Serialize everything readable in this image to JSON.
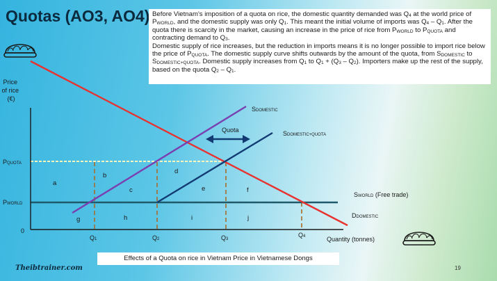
{
  "title": "Quotas (AO3, AO4)",
  "description": [
    [
      "Before Vietnam's imposition of a quota on rice, the domestic quantity demanded was Q",
      "4",
      " at the world price of P",
      "WORLD",
      ", and the domestic supply was only Q",
      "1",
      ". This meant the initial volume of imports was Q",
      "4",
      " – Q",
      "1",
      ". After the quota there is scarcity in the market, causing an increase in the price of rice from P",
      "WORLD",
      " to P",
      "QUOTA",
      " and contracting demand to Q",
      "3",
      "."
    ],
    [
      "Domestic supply of rice increases, but the reduction in imports means it is no longer possible to import rice below the price of P",
      "QUOTA",
      ". The domestic supply curve shifts outwards by the amount of the quota, from S",
      "DOMESTIC",
      " to S",
      "DOMESTIC+QUOTA",
      ". Domestic supply increases from Q",
      "1",
      " to Q",
      "1",
      " + (Q",
      "3",
      " – Q",
      "2",
      "). Importers make up the rest of the supply, based on the quota Q",
      "2",
      " – Q",
      "1",
      "."
    ]
  ],
  "diagram": {
    "y_axis_label": [
      "Price",
      "of rice",
      "(€)"
    ],
    "x_axis_label": "Quantity (tonnes)",
    "origin_label": "0",
    "price_labels": {
      "quota": {
        "main": "P",
        "sub": "QUOTA"
      },
      "world": {
        "main": "P",
        "sub": "WORLD"
      }
    },
    "quantity_labels": [
      {
        "main": "Q",
        "sub": "1"
      },
      {
        "main": "Q",
        "sub": "2"
      },
      {
        "main": "Q",
        "sub": "3"
      },
      {
        "main": "Q",
        "sub": "4"
      }
    ],
    "curves": {
      "s_domestic": {
        "main": "S",
        "sub": "DOMESTIC"
      },
      "s_domestic_quota": {
        "main": "S",
        "sub": "DOMESTIC+QUOTA"
      },
      "s_world": {
        "main": "S",
        "sub": "WORLD",
        "suffix": " (Free trade)"
      },
      "d_domestic": {
        "main": "D",
        "sub": "DOMESTIC"
      }
    },
    "quota_label": "Quota",
    "regions": [
      "a",
      "b",
      "c",
      "d",
      "e",
      "f",
      "g",
      "h",
      "i",
      "j"
    ],
    "colors": {
      "demand": "#e8322f",
      "supply_domestic": "#7a3fb0",
      "supply_quota": "#123a73",
      "world_price": "#1e5a6a",
      "quota_price": "#fff7c2",
      "guides": "#a86a2a"
    }
  },
  "caption": "Effects of a Quota on rice in Vietnam Price in Vietnamese Dongs",
  "brand": "Theibtrainer.com",
  "page_number": "19",
  "icons": [
    "sushi-roll-icon",
    "sushi-roll-icon"
  ]
}
